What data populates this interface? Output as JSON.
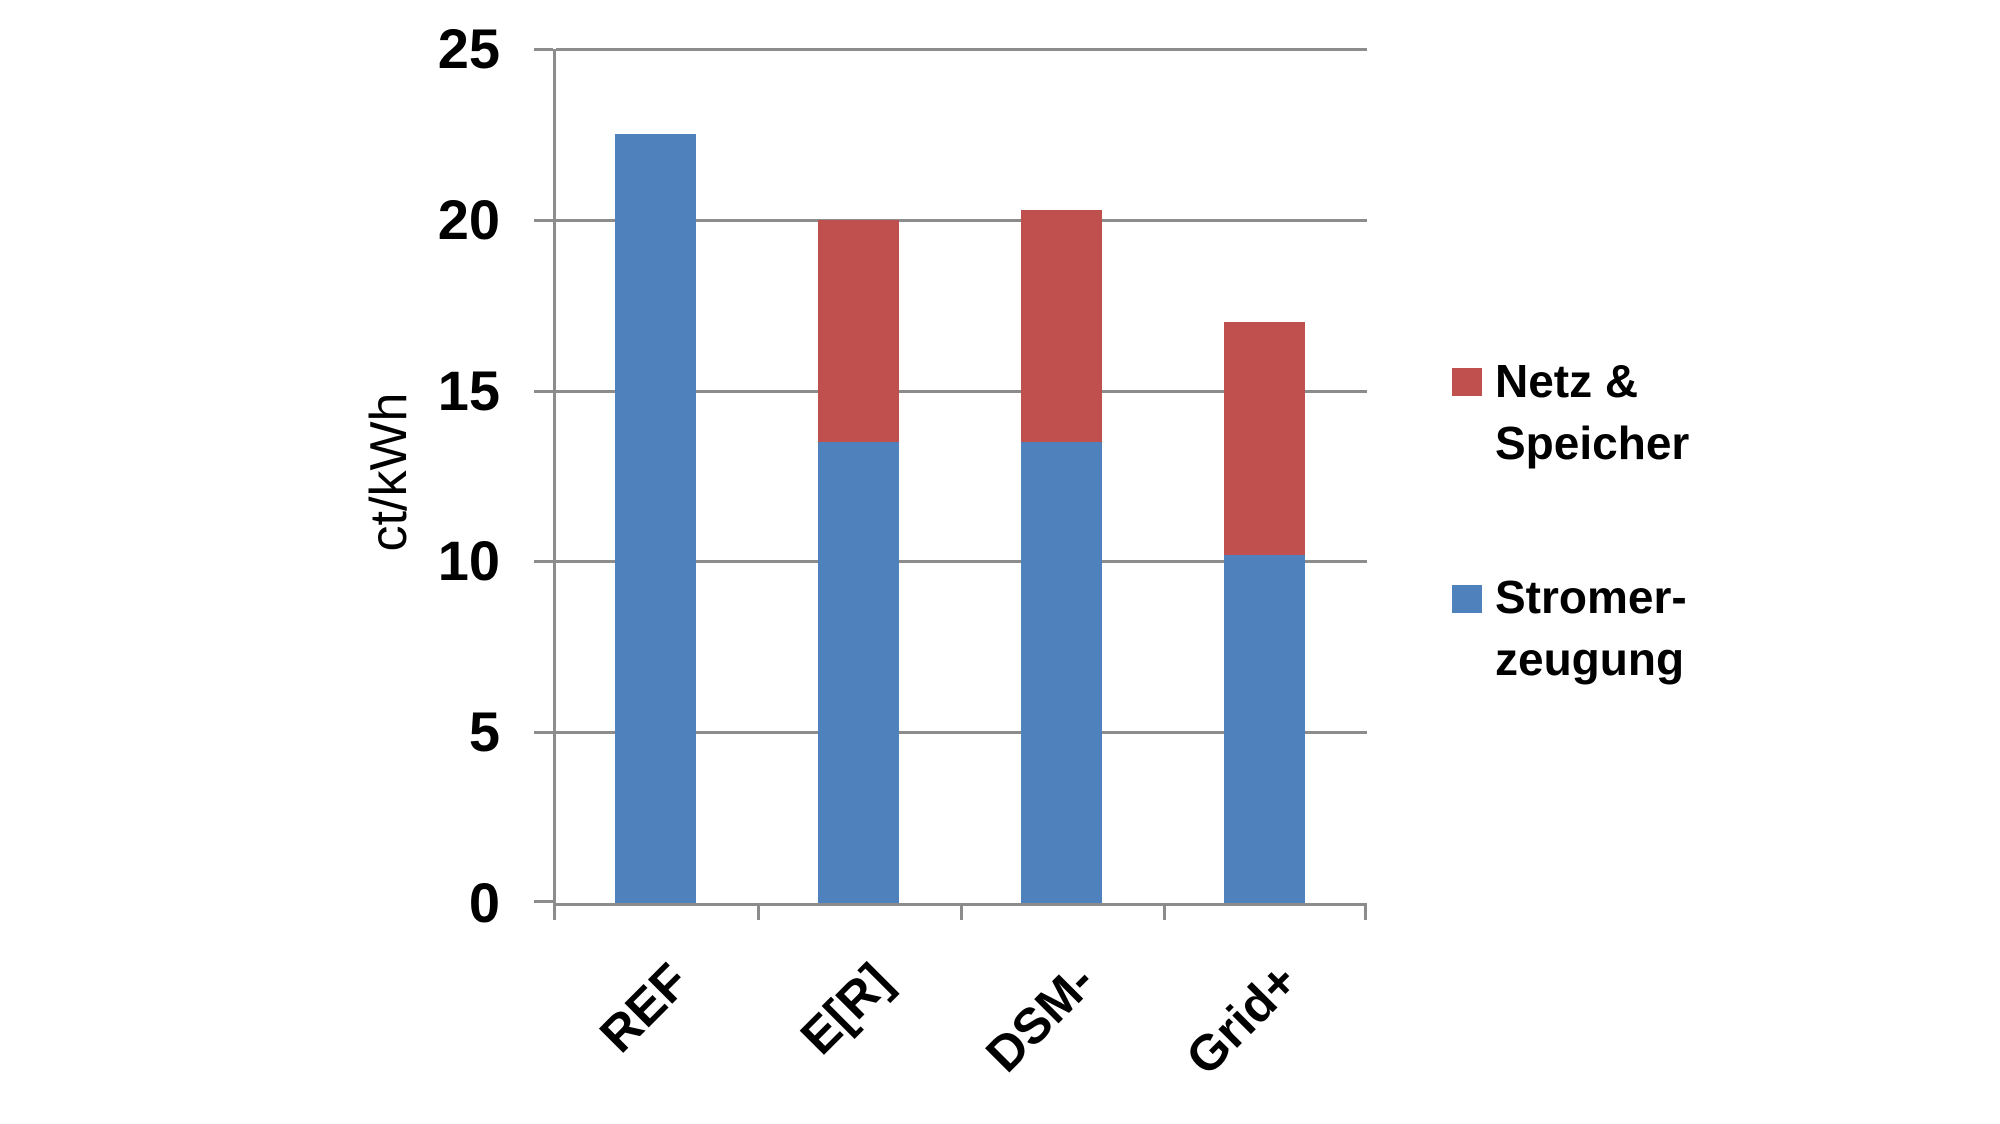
{
  "chart_data": {
    "type": "bar",
    "stacked": true,
    "categories": [
      "REF",
      "E[R]",
      "DSM-",
      "Grid+"
    ],
    "series": [
      {
        "name": "Stromer-zeugung",
        "color": "#4f81bd",
        "values": [
          22.5,
          13.5,
          13.5,
          10.2
        ]
      },
      {
        "name": "Netz & Speicher",
        "color": "#c0504d",
        "values": [
          0,
          6.5,
          6.8,
          6.8
        ]
      }
    ],
    "totals": [
      22.5,
      20.0,
      20.3,
      17.0
    ],
    "title": "",
    "xlabel": "",
    "ylabel": "ct/kWh",
    "ylim": [
      0,
      25
    ],
    "ytick_interval": 5,
    "grid": true,
    "legend_position": "right"
  },
  "axis": {
    "ylabel": "ct/kWh",
    "yticks": [
      "25",
      "20",
      "15",
      "10",
      "5",
      "0"
    ],
    "xlabels": [
      "REF",
      "E[R]",
      "DSM-",
      "Grid+"
    ]
  },
  "legend": {
    "items": [
      {
        "line1": "Netz &",
        "line2": "Speicher",
        "color": "#c0504d",
        "swatch": "netz-speicher-swatch"
      },
      {
        "line1": "Stromer-",
        "line2": "zeugung",
        "color": "#4f81bd",
        "swatch": "stromerzeugung-swatch"
      }
    ]
  },
  "colors": {
    "bar_blue": "#4f81bd",
    "bar_red": "#c0504d",
    "gridline": "#8c8c8c",
    "axis": "#8c8c8c",
    "text": "#000000",
    "background": "#ffffff"
  }
}
